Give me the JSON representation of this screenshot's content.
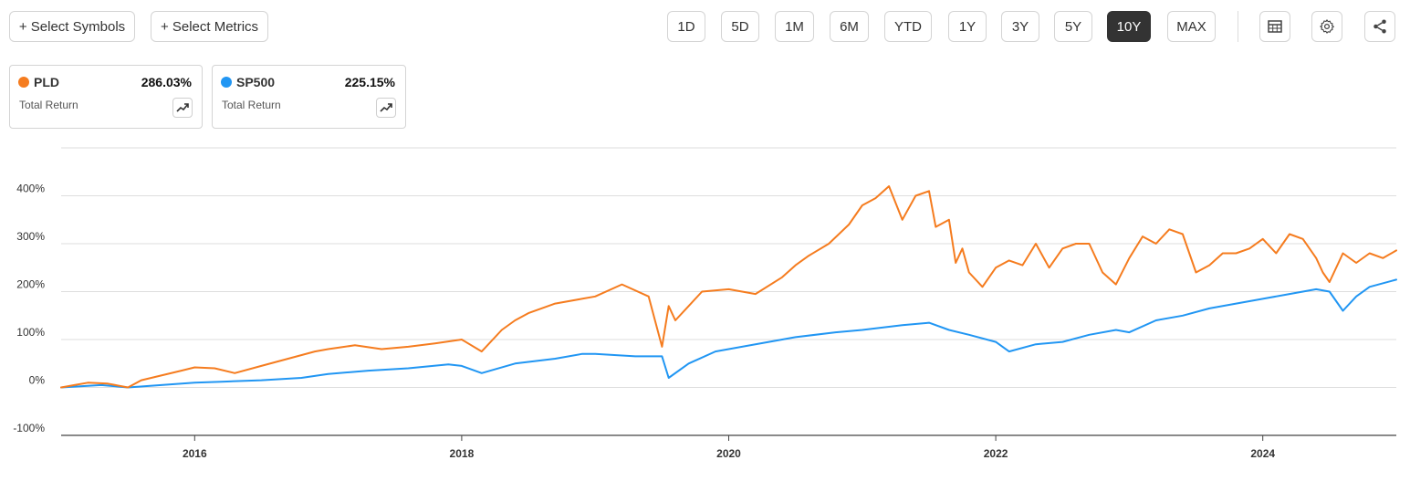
{
  "toolbar": {
    "select_symbols": "+ Select Symbols",
    "select_metrics": "+ Select Metrics",
    "ranges": [
      "1D",
      "5D",
      "1M",
      "6M",
      "YTD",
      "1Y",
      "3Y",
      "5Y",
      "10Y",
      "MAX"
    ],
    "active_range": "10Y",
    "icons": [
      "table-icon",
      "gear-icon",
      "share-icon"
    ]
  },
  "legend": [
    {
      "symbol": "PLD",
      "return": "286.03%",
      "label": "Total Return",
      "color": "#f57c1f"
    },
    {
      "symbol": "SP500",
      "return": "225.15%",
      "label": "Total Return",
      "color": "#2196f3"
    }
  ],
  "chart_data": {
    "type": "line",
    "title": "",
    "xlabel": "",
    "ylabel": "",
    "x_range": [
      2015.0,
      2025.0
    ],
    "ylim": [
      -100,
      500
    ],
    "y_ticks": [
      400,
      300,
      200,
      100,
      0,
      -100
    ],
    "y_tick_labels": [
      "400%",
      "300%",
      "200%",
      "100%",
      "0%",
      "-100%"
    ],
    "x_ticks": [
      2016,
      2018,
      2020,
      2022,
      2024
    ],
    "x_tick_labels": [
      "2016",
      "2018",
      "2020",
      "2022",
      "2024"
    ],
    "grid": true,
    "series": [
      {
        "name": "PLD",
        "color": "#f57c1f",
        "x": [
          2015.0,
          2015.1,
          2015.2,
          2015.35,
          2015.5,
          2015.6,
          2015.75,
          2015.9,
          2016.0,
          2016.15,
          2016.3,
          2016.5,
          2016.7,
          2016.9,
          2017.0,
          2017.2,
          2017.4,
          2017.6,
          2017.8,
          2018.0,
          2018.15,
          2018.3,
          2018.4,
          2018.5,
          2018.7,
          2018.9,
          2019.0,
          2019.2,
          2019.4,
          2019.5,
          2019.55,
          2019.6,
          2019.7,
          2019.8,
          2020.0,
          2020.2,
          2020.4,
          2020.5,
          2020.6,
          2020.75,
          2020.9,
          2021.0,
          2021.1,
          2021.2,
          2021.3,
          2021.4,
          2021.5,
          2021.55,
          2021.65,
          2021.7,
          2021.75,
          2021.8,
          2021.9,
          2022.0,
          2022.1,
          2022.2,
          2022.3,
          2022.4,
          2022.5,
          2022.6,
          2022.7,
          2022.8,
          2022.9,
          2023.0,
          2023.1,
          2023.2,
          2023.3,
          2023.4,
          2023.5,
          2023.6,
          2023.7,
          2023.8,
          2023.9,
          2024.0,
          2024.1,
          2024.2,
          2024.3,
          2024.4,
          2024.45,
          2024.5,
          2024.6,
          2024.7,
          2024.8,
          2024.9,
          2025.0
        ],
        "y": [
          0,
          5,
          10,
          8,
          0,
          15,
          25,
          35,
          42,
          40,
          30,
          45,
          60,
          75,
          80,
          88,
          80,
          85,
          92,
          100,
          75,
          120,
          140,
          155,
          175,
          185,
          190,
          215,
          190,
          85,
          170,
          140,
          170,
          200,
          205,
          195,
          230,
          255,
          275,
          300,
          340,
          380,
          395,
          420,
          350,
          400,
          410,
          335,
          350,
          260,
          290,
          240,
          210,
          250,
          265,
          255,
          300,
          250,
          290,
          300,
          300,
          240,
          215,
          270,
          315,
          300,
          330,
          320,
          240,
          255,
          280,
          280,
          290,
          310,
          280,
          320,
          310,
          270,
          240,
          220,
          280,
          260,
          280,
          270,
          286
        ]
      },
      {
        "name": "SP500",
        "color": "#2196f3",
        "x": [
          2015.0,
          2015.3,
          2015.5,
          2015.75,
          2016.0,
          2016.2,
          2016.5,
          2016.8,
          2017.0,
          2017.3,
          2017.6,
          2017.9,
          2018.0,
          2018.15,
          2018.4,
          2018.7,
          2018.9,
          2019.0,
          2019.3,
          2019.5,
          2019.55,
          2019.7,
          2019.9,
          2020.0,
          2020.3,
          2020.5,
          2020.8,
          2021.0,
          2021.3,
          2021.5,
          2021.65,
          2021.8,
          2022.0,
          2022.1,
          2022.3,
          2022.5,
          2022.7,
          2022.9,
          2023.0,
          2023.2,
          2023.4,
          2023.6,
          2023.8,
          2024.0,
          2024.2,
          2024.4,
          2024.5,
          2024.6,
          2024.7,
          2024.8,
          2025.0
        ],
        "y": [
          0,
          5,
          0,
          5,
          10,
          12,
          15,
          20,
          28,
          35,
          40,
          48,
          45,
          30,
          50,
          60,
          70,
          70,
          65,
          65,
          20,
          50,
          75,
          80,
          95,
          105,
          115,
          120,
          130,
          135,
          120,
          110,
          95,
          75,
          90,
          95,
          110,
          120,
          115,
          140,
          150,
          165,
          175,
          185,
          195,
          205,
          200,
          160,
          190,
          210,
          225
        ]
      }
    ]
  }
}
